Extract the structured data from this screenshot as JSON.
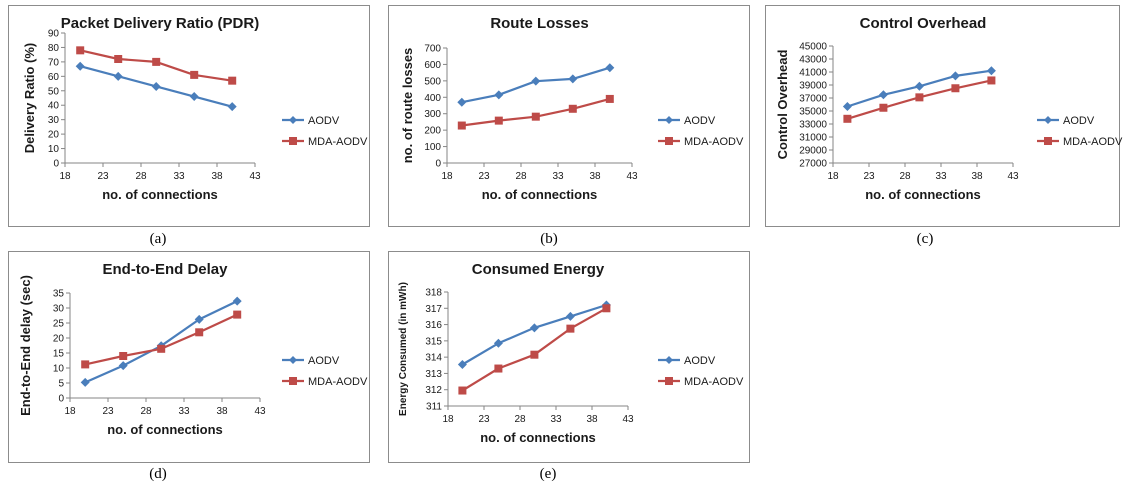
{
  "colors": {
    "aodv": "#4a7ebb",
    "mda": "#be4b48",
    "frame": "#8c8c8c",
    "axis": "#868686"
  },
  "chart_data": [
    {
      "id": "a",
      "type": "line",
      "title": "Packet Delivery Ratio (PDR)",
      "xlabel": "no. of connections",
      "ylabel": "Delivery Ratio (%)",
      "caption": "(a)",
      "xlim": [
        18,
        43
      ],
      "xticks": [
        "18",
        "23",
        "28",
        "33",
        "38",
        "43"
      ],
      "ylim": [
        0,
        90
      ],
      "yticks": [
        "0",
        "10",
        "20",
        "30",
        "40",
        "50",
        "60",
        "70",
        "80",
        "90"
      ],
      "x": [
        20,
        25,
        30,
        35,
        40
      ],
      "series": [
        {
          "name": "AODV",
          "values": [
            67,
            60,
            53,
            46,
            39
          ]
        },
        {
          "name": "MDA-AODV",
          "values": [
            78,
            72,
            70,
            61,
            57
          ]
        }
      ],
      "legend": "right",
      "grid": false
    },
    {
      "id": "b",
      "type": "line",
      "title": "Route Losses",
      "xlabel": "no. of connections",
      "ylabel": "no. of route losses",
      "caption": "(b)",
      "xlim": [
        18,
        43
      ],
      "xticks": [
        "18",
        "23",
        "28",
        "33",
        "38",
        "43"
      ],
      "ylim": [
        0,
        700
      ],
      "yticks": [
        "0",
        "100",
        "200",
        "300",
        "400",
        "500",
        "600",
        "700"
      ],
      "x": [
        20,
        25,
        30,
        35,
        40
      ],
      "series": [
        {
          "name": "AODV",
          "values": [
            370,
            415,
            498,
            512,
            580
          ]
        },
        {
          "name": "MDA-AODV",
          "values": [
            228,
            258,
            282,
            330,
            390
          ]
        }
      ],
      "legend": "right",
      "grid": false
    },
    {
      "id": "c",
      "type": "line",
      "title": "Control Overhead",
      "xlabel": "no. of connections",
      "ylabel": "Control Overhead",
      "caption": "(c)",
      "xlim": [
        18,
        43
      ],
      "xticks": [
        "18",
        "23",
        "28",
        "33",
        "38",
        "43"
      ],
      "ylim": [
        27000,
        45000
      ],
      "yticks": [
        "27000",
        "29000",
        "31000",
        "33000",
        "35000",
        "37000",
        "39000",
        "41000",
        "43000",
        "45000"
      ],
      "x": [
        20,
        25,
        30,
        35,
        40
      ],
      "series": [
        {
          "name": "AODV",
          "values": [
            35700,
            37500,
            38800,
            40400,
            41200
          ]
        },
        {
          "name": "MDA-AODV",
          "values": [
            33800,
            35500,
            37100,
            38500,
            39700
          ]
        }
      ],
      "legend": "right",
      "grid": false
    },
    {
      "id": "d",
      "type": "line",
      "title": "End-to-End Delay",
      "xlabel": "no. of connections",
      "ylabel": "End-to-End delay (sec)",
      "caption": "(d)",
      "xlim": [
        18,
        43
      ],
      "xticks": [
        "18",
        "23",
        "28",
        "33",
        "38",
        "43"
      ],
      "ylim": [
        0,
        35
      ],
      "yticks": [
        "0",
        "5",
        "10",
        "15",
        "20",
        "25",
        "30",
        "35"
      ],
      "x": [
        20,
        25,
        30,
        35,
        40
      ],
      "series": [
        {
          "name": "AODV",
          "values": [
            5.2,
            10.8,
            17.4,
            26.2,
            32.3
          ]
        },
        {
          "name": "MDA-AODV",
          "values": [
            11.2,
            14.0,
            16.4,
            21.9,
            27.8
          ]
        }
      ],
      "legend": "right",
      "grid": false
    },
    {
      "id": "e",
      "type": "line",
      "title": "Consumed Energy",
      "xlabel": "no. of connections",
      "ylabel": "Energy Consumed (in mWh)",
      "caption": "(e)",
      "xlim": [
        18,
        43
      ],
      "xticks": [
        "18",
        "23",
        "28",
        "33",
        "38",
        "43"
      ],
      "ylim": [
        311,
        318
      ],
      "yticks": [
        "311",
        "312",
        "313",
        "314",
        "315",
        "316",
        "317",
        "318"
      ],
      "x": [
        20,
        25,
        30,
        35,
        40
      ],
      "series": [
        {
          "name": "AODV",
          "values": [
            313.55,
            314.85,
            315.8,
            316.5,
            317.2
          ]
        },
        {
          "name": "MDA-AODV",
          "values": [
            311.95,
            313.3,
            314.15,
            315.75,
            317.0
          ]
        }
      ],
      "legend": "right",
      "grid": false
    }
  ]
}
